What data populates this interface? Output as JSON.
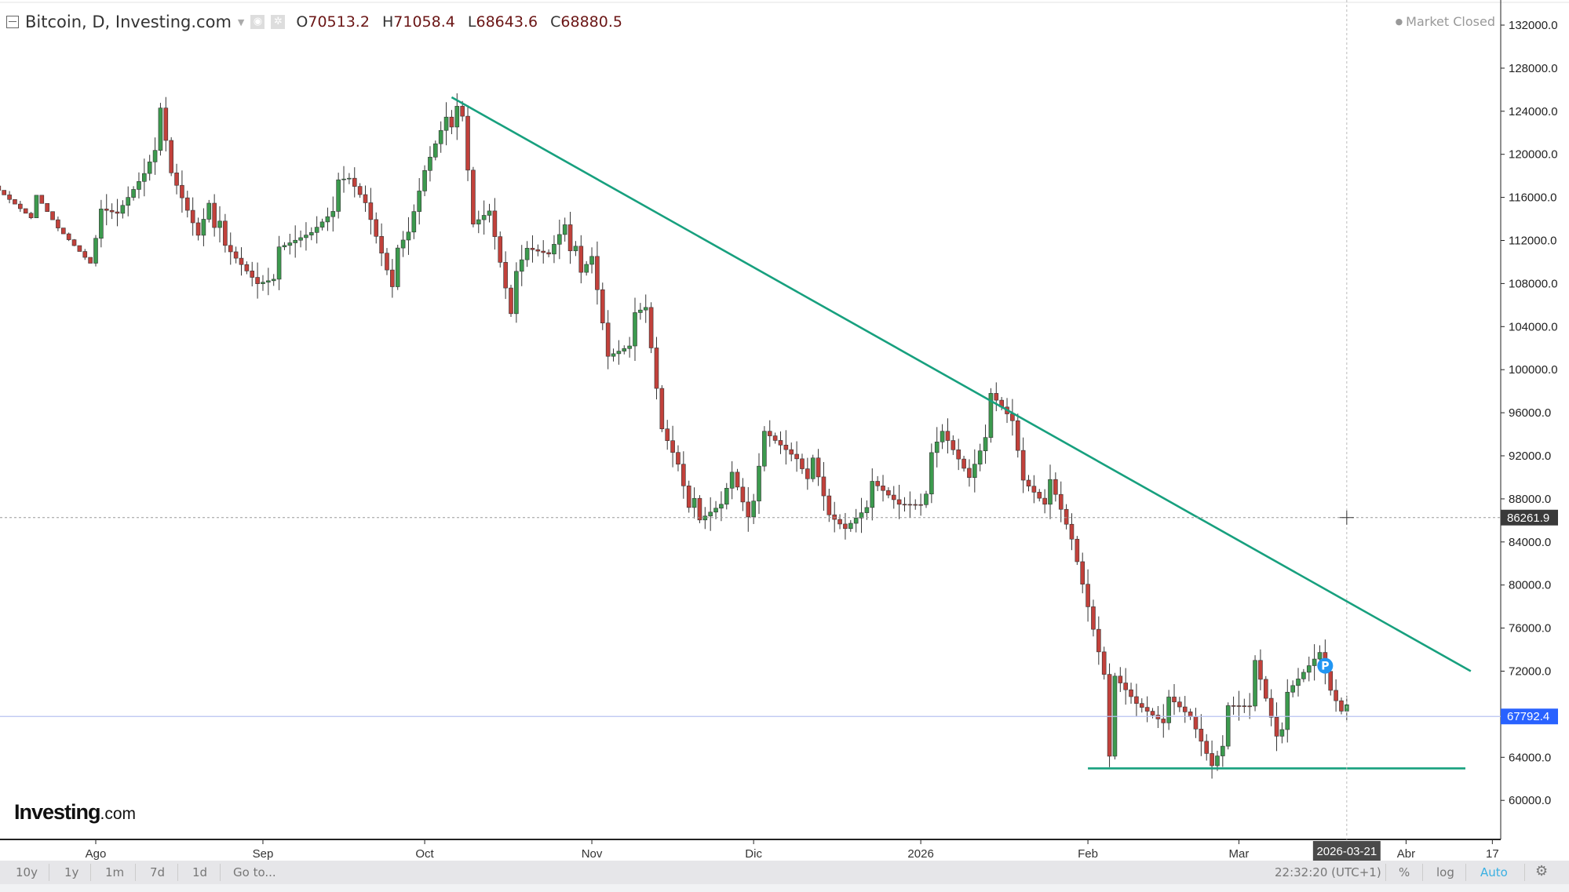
{
  "header": {
    "title": "Bitcoin, D, Investing.com",
    "open_label": "O",
    "open": "70513.2",
    "high_label": "H",
    "high": "71058.4",
    "low_label": "L",
    "low": "68643.6",
    "close_label": "C",
    "close": "68880.5",
    "status": "Market Closed"
  },
  "logo": {
    "name": "Investing",
    "suffix": ".com"
  },
  "toolbar": {
    "ranges": [
      "10y",
      "1y",
      "1m",
      "7d",
      "1d",
      "Go to..."
    ],
    "time": "22:32:20 (UTC+1)",
    "percent": "%",
    "log": "log",
    "auto": "Auto",
    "accent": "#3ab0e2"
  },
  "chart_data": {
    "type": "candlestick",
    "interval": "daily",
    "ylim": [
      58000,
      134000
    ],
    "yticks": [
      60000,
      64000,
      68000,
      72000,
      76000,
      80000,
      84000,
      88000,
      92000,
      96000,
      100000,
      104000,
      108000,
      112000,
      116000,
      120000,
      124000,
      128000,
      132000
    ],
    "xtick_labels": [
      {
        "date": "2025-08-01",
        "label": "Ago"
      },
      {
        "date": "2025-09-01",
        "label": "Sep"
      },
      {
        "date": "2025-10-01",
        "label": "Oct"
      },
      {
        "date": "2025-11-01",
        "label": "Nov"
      },
      {
        "date": "2025-12-01",
        "label": "Dic"
      },
      {
        "date": "2026-01-01",
        "label": "2026"
      },
      {
        "date": "2026-02-01",
        "label": "Feb"
      },
      {
        "date": "2026-03-01",
        "label": "Mar"
      },
      {
        "date": "2026-04-01",
        "label": "Abr"
      },
      {
        "date": "2026-04-17",
        "label": "17"
      }
    ],
    "approx_closes": [
      [
        "2025-07-14",
        119000
      ],
      [
        "2025-07-20",
        118000
      ],
      [
        "2025-07-25",
        115500
      ],
      [
        "2025-08-01",
        113500
      ],
      [
        "2025-08-05",
        114000
      ],
      [
        "2025-08-10",
        119000
      ],
      [
        "2025-08-13",
        123000
      ],
      [
        "2025-08-15",
        117500
      ],
      [
        "2025-08-20",
        113000
      ],
      [
        "2025-08-22",
        116500
      ],
      [
        "2025-08-25",
        110500
      ],
      [
        "2025-08-31",
        108500
      ],
      [
        "2025-09-05",
        110500
      ],
      [
        "2025-09-10",
        113000
      ],
      [
        "2025-09-14",
        116000
      ],
      [
        "2025-09-17",
        117000
      ],
      [
        "2025-09-20",
        115500
      ],
      [
        "2025-09-25",
        109000
      ],
      [
        "2025-09-28",
        112000
      ],
      [
        "2025-10-01",
        118500
      ],
      [
        "2025-10-05",
        124500
      ],
      [
        "2025-10-08",
        122500
      ],
      [
        "2025-10-10",
        113000
      ],
      [
        "2025-10-13",
        115000
      ],
      [
        "2025-10-17",
        106500
      ],
      [
        "2025-10-20",
        110500
      ],
      [
        "2025-10-24",
        111000
      ],
      [
        "2025-10-27",
        114500
      ],
      [
        "2025-10-30",
        108000
      ],
      [
        "2025-11-01",
        110000
      ],
      [
        "2025-11-04",
        101500
      ],
      [
        "2025-11-07",
        103000
      ],
      [
        "2025-11-11",
        105000
      ],
      [
        "2025-11-14",
        94500
      ],
      [
        "2025-11-17",
        92000
      ],
      [
        "2025-11-21",
        85000
      ],
      [
        "2025-11-25",
        87500
      ],
      [
        "2025-11-27",
        91000
      ],
      [
        "2025-12-01",
        86500
      ],
      [
        "2025-12-03",
        93500
      ],
      [
        "2025-12-09",
        92500
      ],
      [
        "2025-12-12",
        90500
      ],
      [
        "2025-12-15",
        86000
      ],
      [
        "2025-12-18",
        85500
      ],
      [
        "2025-12-22",
        88500
      ],
      [
        "2025-12-28",
        87500
      ],
      [
        "2026-01-01",
        88500
      ],
      [
        "2026-01-05",
        93500
      ],
      [
        "2026-01-10",
        90500
      ],
      [
        "2026-01-14",
        96500
      ],
      [
        "2026-01-18",
        95000
      ],
      [
        "2026-01-20",
        90000
      ],
      [
        "2026-01-25",
        88500
      ],
      [
        "2026-01-29",
        84000
      ],
      [
        "2026-02-01",
        78500
      ],
      [
        "2026-02-04",
        73000
      ],
      [
        "2026-02-05",
        62800
      ],
      [
        "2026-02-06",
        70500
      ],
      [
        "2026-02-10",
        69000
      ],
      [
        "2026-02-15",
        68500
      ],
      [
        "2026-02-20",
        67500
      ],
      [
        "2026-02-24",
        64000
      ],
      [
        "2026-02-27",
        67500
      ],
      [
        "2026-03-03",
        68500
      ],
      [
        "2026-03-04",
        73000
      ],
      [
        "2026-03-08",
        67000
      ],
      [
        "2026-03-12",
        70500
      ],
      [
        "2026-03-16",
        74000
      ],
      [
        "2026-03-18",
        71000
      ],
      [
        "2026-03-21",
        68880.5
      ]
    ],
    "trendlines": [
      {
        "from": [
          "2025-10-06",
          125300
        ],
        "to": [
          "2026-04-13",
          72000
        ],
        "color": "#17a07e"
      },
      {
        "from": [
          "2026-02-01",
          62970
        ],
        "to": [
          "2026-04-12",
          62970
        ],
        "color": "#17a07e"
      }
    ],
    "crosshair": {
      "price": "86261.9",
      "date": "2026-03-21"
    },
    "last_price": {
      "price": "67792.4",
      "color": "#2962ff"
    },
    "marker": {
      "date": "2026-03-17",
      "price": 72500,
      "label": "P",
      "color": "#2196f3"
    },
    "colors": {
      "up": "#3c9a4e",
      "down": "#c2413b"
    }
  }
}
